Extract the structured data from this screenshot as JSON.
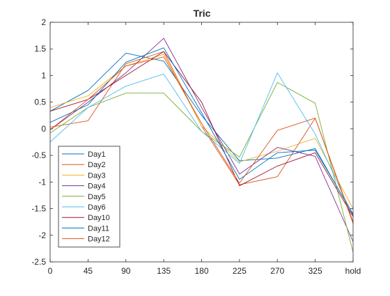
{
  "chart_data": {
    "type": "line",
    "title": "Tric",
    "xlabel": "",
    "ylabel": "",
    "categories": [
      "0",
      "45",
      "90",
      "135",
      "180",
      "225",
      "270",
      "325",
      "hold"
    ],
    "ylim": [
      -2.5,
      2
    ],
    "yticks": [
      "-2.5",
      "-2",
      "-1.5",
      "-1",
      "-0.5",
      "0",
      "0.5",
      "1",
      "1.5",
      "2"
    ],
    "ytick_values": [
      -2.5,
      -2,
      -1.5,
      -1,
      -0.5,
      0,
      0.5,
      1,
      1.5,
      2
    ],
    "grid": false,
    "legend_position": "bottom-left",
    "series": [
      {
        "name": "Day1",
        "color": "#0072BD",
        "values": [
          0.33,
          0.72,
          1.42,
          1.27,
          0.25,
          -0.6,
          -0.55,
          -0.37,
          -1.62
        ]
      },
      {
        "name": "Day2",
        "color": "#D95319",
        "values": [
          0.03,
          0.15,
          1.22,
          1.45,
          0.05,
          -1.05,
          -0.9,
          0.2,
          -1.75
        ]
      },
      {
        "name": "Day3",
        "color": "#EDB120",
        "values": [
          0.4,
          0.62,
          1.18,
          1.4,
          0.05,
          -0.62,
          -0.42,
          -0.18,
          -1.5
        ]
      },
      {
        "name": "Day4",
        "color": "#7E2F8E",
        "values": [
          -0.02,
          0.5,
          1.05,
          1.7,
          0.4,
          -0.85,
          -0.35,
          -0.52,
          -2.12
        ]
      },
      {
        "name": "Day5",
        "color": "#77AC30",
        "values": [
          -0.08,
          0.4,
          0.67,
          0.67,
          -0.05,
          -0.53,
          0.87,
          0.48,
          -2.32
        ]
      },
      {
        "name": "Day6",
        "color": "#4DBEEE",
        "values": [
          -0.25,
          0.4,
          0.8,
          1.03,
          -0.05,
          -0.65,
          1.05,
          -0.1,
          -1.65
        ]
      },
      {
        "name": "Day10",
        "color": "#A2142F",
        "values": [
          0.33,
          0.55,
          1.0,
          1.45,
          0.5,
          -1.07,
          -0.7,
          -0.45,
          -1.65
        ]
      },
      {
        "name": "Day11",
        "color": "#0072BD",
        "values": [
          0.12,
          0.45,
          1.25,
          1.52,
          0.3,
          -0.95,
          -0.45,
          -0.4,
          -1.6
        ]
      },
      {
        "name": "Day12",
        "color": "#D95319",
        "values": [
          -0.02,
          0.55,
          1.18,
          1.35,
          0.1,
          -1.02,
          -0.03,
          0.2,
          -1.78
        ]
      }
    ]
  }
}
